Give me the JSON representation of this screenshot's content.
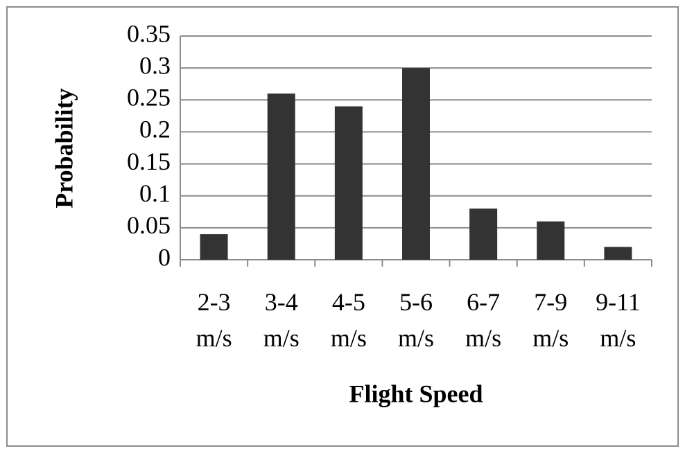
{
  "chart_data": {
    "type": "bar",
    "x_label": "Flight Speed",
    "y_label": "Probability",
    "categories": [
      "2-3 m/s",
      "3-4 m/s",
      "4-5 m/s",
      "5-6 m/s",
      "6-7 m/s",
      "7-9 m/s",
      "9-11 m/s"
    ],
    "values": [
      0.04,
      0.26,
      0.24,
      0.3,
      0.08,
      0.06,
      0.02
    ],
    "color": "#333333",
    "ylim": [
      0,
      0.35
    ],
    "yticks": [
      0,
      0.05,
      0.1,
      0.15,
      0.2,
      0.25,
      0.3,
      0.35
    ],
    "grid": true
  }
}
